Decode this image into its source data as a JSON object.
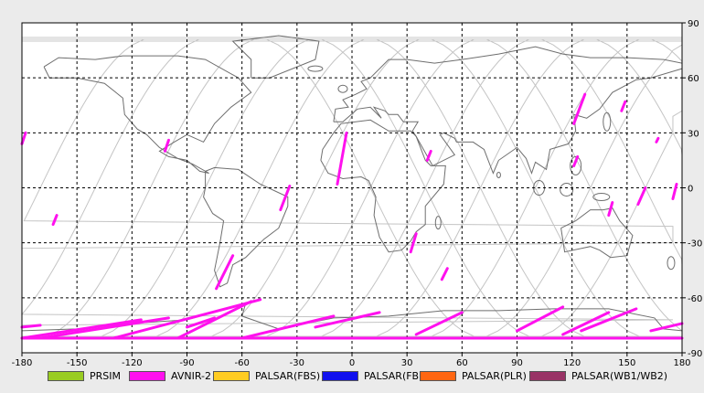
{
  "map": {
    "x_ticks": [
      "-180",
      "-150",
      "-120",
      "-90",
      "-60",
      "-30",
      "0",
      "30",
      "60",
      "90",
      "120",
      "150",
      "180"
    ],
    "y_ticks": [
      "90",
      "60",
      "30",
      "0",
      "-30",
      "-60",
      "-90"
    ]
  },
  "legend": [
    {
      "label": "PRSIM",
      "color": "#99cc22"
    },
    {
      "label": "AVNIR-2",
      "color": "#ff11ee"
    },
    {
      "label": "PALSAR(FBS)",
      "color": "#ffcc22"
    },
    {
      "label": "PALSAR(FBD)",
      "color": "#1111ee"
    },
    {
      "label": "PALSAR(PLR)",
      "color": "#ff6611"
    },
    {
      "label": "PALSAR(WB1/WB2)",
      "color": "#993366"
    }
  ],
  "chart_data": {
    "type": "scatter",
    "xlim": [
      -180,
      180
    ],
    "ylim": [
      -90,
      90
    ],
    "grid": true,
    "legend_placement": "bottom",
    "avnir2_segments": [
      {
        "x": [
          -180,
          -178
        ],
        "y": [
          24,
          30
        ]
      },
      {
        "x": [
          -102,
          -100
        ],
        "y": [
          20,
          26
        ]
      },
      {
        "x": [
          -163,
          -161
        ],
        "y": [
          -20,
          -15
        ]
      },
      {
        "x": [
          -74,
          -65
        ],
        "y": [
          -55,
          -37
        ]
      },
      {
        "x": [
          -39,
          -34
        ],
        "y": [
          -12,
          1
        ]
      },
      {
        "x": [
          -8,
          -3
        ],
        "y": [
          2,
          30
        ]
      },
      {
        "x": [
          32,
          35
        ],
        "y": [
          -35,
          -25
        ]
      },
      {
        "x": [
          41,
          43
        ],
        "y": [
          15,
          20
        ]
      },
      {
        "x": [
          49,
          52
        ],
        "y": [
          -50,
          -44
        ]
      },
      {
        "x": [
          121,
          127
        ],
        "y": [
          35,
          51
        ]
      },
      {
        "x": [
          147,
          149
        ],
        "y": [
          42,
          47
        ]
      },
      {
        "x": [
          140,
          142
        ],
        "y": [
          -15,
          -8
        ]
      },
      {
        "x": [
          156,
          160
        ],
        "y": [
          -9,
          0
        ]
      },
      {
        "x": [
          175,
          177
        ],
        "y": [
          -6,
          2
        ]
      },
      {
        "x": [
          121,
          123
        ],
        "y": [
          12,
          17
        ]
      },
      {
        "x": [
          166,
          167
        ],
        "y": [
          25,
          27
        ]
      },
      {
        "x": [
          -180,
          -170
        ],
        "y": [
          -76,
          -75
        ]
      },
      {
        "x": [
          -180,
          -115
        ],
        "y": [
          -82,
          -72
        ]
      },
      {
        "x": [
          -170,
          -100
        ],
        "y": [
          -82,
          -71
        ]
      },
      {
        "x": [
          -90,
          -75
        ],
        "y": [
          -76,
          -71
        ]
      },
      {
        "x": [
          -130,
          -50
        ],
        "y": [
          -82,
          -61
        ]
      },
      {
        "x": [
          -95,
          -55
        ],
        "y": [
          -82,
          -62
        ]
      },
      {
        "x": [
          -60,
          -10
        ],
        "y": [
          -82,
          -70
        ]
      },
      {
        "x": [
          -20,
          15
        ],
        "y": [
          -76,
          -68
        ]
      },
      {
        "x": [
          35,
          60
        ],
        "y": [
          -80,
          -68
        ]
      },
      {
        "x": [
          90,
          115
        ],
        "y": [
          -78,
          -65
        ]
      },
      {
        "x": [
          115,
          140
        ],
        "y": [
          -80,
          -68
        ]
      },
      {
        "x": [
          125,
          155
        ],
        "y": [
          -78,
          -66
        ]
      },
      {
        "x": [
          163,
          180
        ],
        "y": [
          -78,
          -74
        ]
      },
      {
        "x": [
          -180,
          180
        ],
        "y": [
          -82,
          -82
        ]
      }
    ]
  }
}
